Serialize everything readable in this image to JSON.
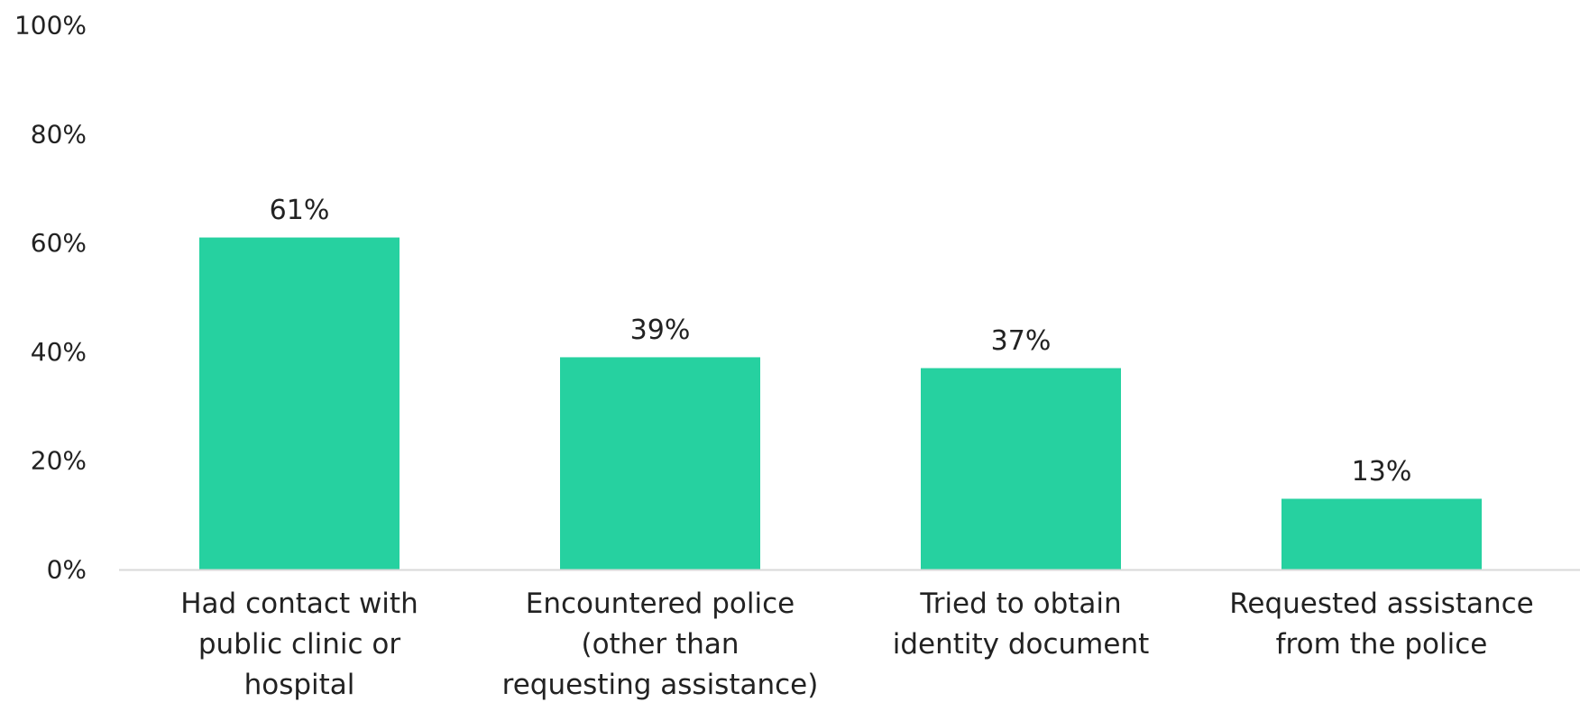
{
  "chart_data": {
    "type": "bar",
    "categories": [
      [
        "Had contact with",
        "public clinic or",
        "hospital"
      ],
      [
        "Encountered police",
        "(other than",
        "requesting assistance)"
      ],
      [
        "Tried to obtain",
        "identity document"
      ],
      [
        "Requested assistance",
        "from the police"
      ]
    ],
    "values": [
      61,
      39,
      37,
      13
    ],
    "data_labels": [
      "61%",
      "39%",
      "37%",
      "13%"
    ],
    "ylim": [
      0,
      100
    ],
    "yticks": [
      0,
      20,
      40,
      60,
      80,
      100
    ],
    "ytick_labels": [
      "0%",
      "20%",
      "40%",
      "60%",
      "80%",
      "100%"
    ],
    "grid": false,
    "legend": "none",
    "bar_color": "#26d1a0",
    "axis_color": "#d9d9d9"
  }
}
